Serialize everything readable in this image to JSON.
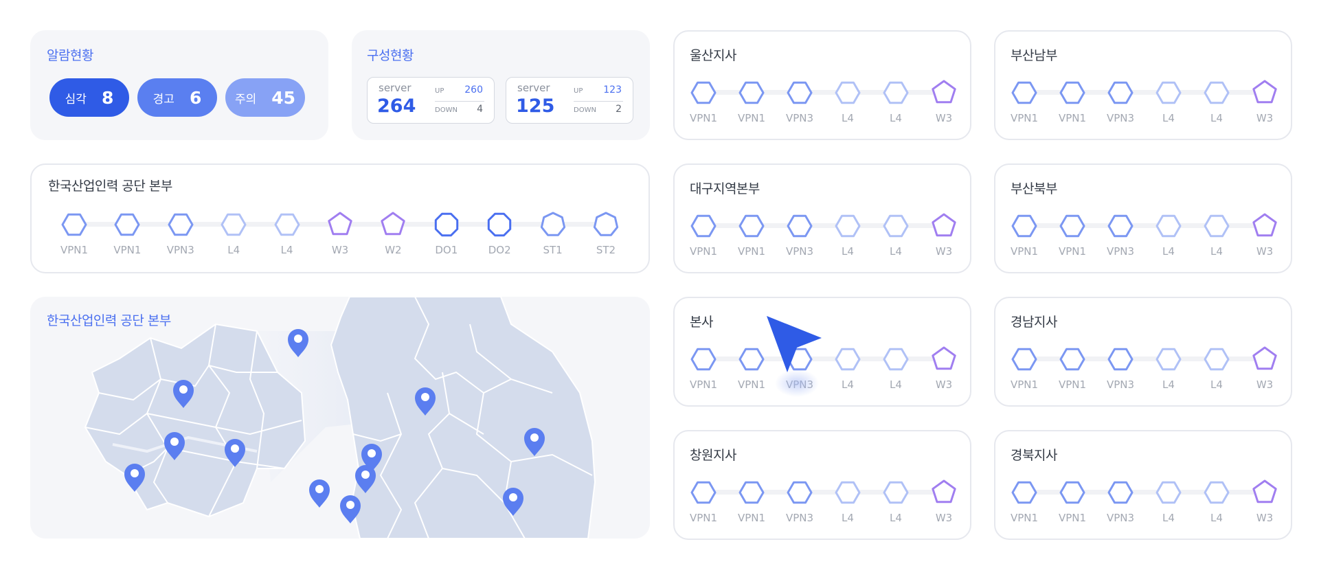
{
  "alarm": {
    "title": "알람현황",
    "items": [
      {
        "label": "심각",
        "value": "8",
        "color": "#2f5be6"
      },
      {
        "label": "경고",
        "value": "6",
        "color": "#5a7ff0"
      },
      {
        "label": "주의",
        "value": "45",
        "color": "#87a2f5"
      }
    ]
  },
  "config": {
    "title": "구성현황",
    "servers": [
      {
        "label": "server",
        "value": "264",
        "up_label": "UP",
        "up": "260",
        "down_label": "DOWN",
        "down": "4"
      },
      {
        "label": "server",
        "value": "125",
        "up_label": "UP",
        "up": "123",
        "down_label": "DOWN",
        "down": "2"
      }
    ]
  },
  "hq": {
    "title": "한국산업인력 공단 본부",
    "nodes": [
      {
        "label": "VPN1",
        "shape": "hexagon-icon",
        "color": "#7b97f2"
      },
      {
        "label": "VPN1",
        "shape": "hexagon-icon",
        "color": "#7b97f2"
      },
      {
        "label": "VPN3",
        "shape": "hexagon-icon",
        "color": "#7b97f2"
      },
      {
        "label": "L4",
        "shape": "hexagon-icon",
        "color": "#b0c1f6"
      },
      {
        "label": "L4",
        "shape": "hexagon-icon",
        "color": "#b0c1f6"
      },
      {
        "label": "W3",
        "shape": "pentagon-icon",
        "color": "#a07ef0"
      },
      {
        "label": "W2",
        "shape": "pentagon-icon",
        "color": "#a07ef0"
      },
      {
        "label": "DO1",
        "shape": "octagon-icon",
        "color": "#4a6ff0"
      },
      {
        "label": "DO2",
        "shape": "octagon-icon",
        "color": "#4a6ff0"
      },
      {
        "label": "ST1",
        "shape": "heptagon-icon",
        "color": "#7b97f2"
      },
      {
        "label": "ST2",
        "shape": "heptagon-icon",
        "color": "#7b97f2"
      }
    ]
  },
  "map": {
    "title": "한국산업인력 공단 본부",
    "land_color": "#d4dcec",
    "pin_color": "#5b7ef0"
  },
  "branches": [
    {
      "title": "울산지사",
      "nodes": [
        "VPN1",
        "VPN1",
        "VPN3",
        "L4",
        "L4",
        "W3"
      ]
    },
    {
      "title": "부산남부",
      "nodes": [
        "VPN1",
        "VPN1",
        "VPN3",
        "L4",
        "L4",
        "W3"
      ]
    },
    {
      "title": "대구지역본부",
      "nodes": [
        "VPN1",
        "VPN1",
        "VPN3",
        "L4",
        "L4",
        "W3"
      ]
    },
    {
      "title": "부산북부",
      "nodes": [
        "VPN1",
        "VPN1",
        "VPN3",
        "L4",
        "L4",
        "W3"
      ]
    },
    {
      "title": "본사",
      "nodes": [
        "VPN1",
        "VPN1",
        "VPN3",
        "L4",
        "L4",
        "W3"
      ]
    },
    {
      "title": "경남지사",
      "nodes": [
        "VPN1",
        "VPN1",
        "VPN3",
        "L4",
        "L4",
        "W3"
      ]
    },
    {
      "title": "창원지사",
      "nodes": [
        "VPN1",
        "VPN1",
        "VPN3",
        "L4",
        "L4",
        "W3"
      ]
    },
    {
      "title": "경북지사",
      "nodes": [
        "VPN1",
        "VPN1",
        "VPN3",
        "L4",
        "L4",
        "W3"
      ]
    }
  ],
  "branch_node_styles": [
    {
      "shape": "hexagon-icon",
      "color": "#7b97f2"
    },
    {
      "shape": "hexagon-icon",
      "color": "#7b97f2"
    },
    {
      "shape": "hexagon-icon",
      "color": "#7b97f2"
    },
    {
      "shape": "hexagon-icon",
      "color": "#b0c1f6"
    },
    {
      "shape": "hexagon-icon",
      "color": "#b0c1f6"
    },
    {
      "shape": "pentagon-icon",
      "color": "#a07ef0"
    }
  ],
  "cursor": {
    "icon": "pointer-arrow-icon",
    "color": "#2f5be6"
  }
}
